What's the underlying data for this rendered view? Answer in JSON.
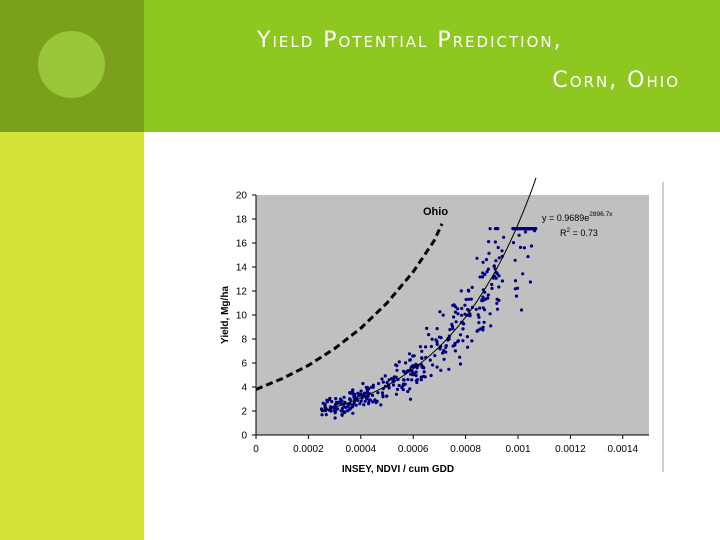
{
  "slide": {
    "title_line1": "Yield Potential Prediction,",
    "title_line2": "Corn, Ohio",
    "colors": {
      "top_band": "#8ec71f",
      "top_left_band": "#7aa01c",
      "left_band": "#d5e23a",
      "plot_bg": "#c0c0c0",
      "points": "#000080"
    }
  },
  "chart_data": {
    "type": "scatter",
    "xlabel": "INSEY, NDVI / cum GDD",
    "ylabel": "Yield, Mg/ha",
    "xlim": [
      0,
      0.0015
    ],
    "ylim": [
      0,
      20
    ],
    "x_ticks": [
      "0",
      "0.0002",
      "0.0004",
      "0.0006",
      "0.0008",
      "0.001",
      "0.0012",
      "0.0014"
    ],
    "y_ticks": [
      "0",
      "2",
      "4",
      "6",
      "8",
      "10",
      "12",
      "14",
      "16",
      "18",
      "20"
    ],
    "grid": false,
    "annotations": {
      "label": "Ohio",
      "equation": "y = 0.9689e",
      "exponent": "2896.7x",
      "r2_prefix": "R",
      "r2_sup": "2",
      "r2_suffix": " = 0.73"
    },
    "fit_curve": {
      "a": 0.9689,
      "b": 2896.7,
      "x_range": [
        0.00025,
        0.00107
      ]
    },
    "potential_curve": {
      "x": [
        0,
        0.0001,
        0.0002,
        0.0003,
        0.0004,
        0.0005,
        0.0006,
        0.00068,
        0.00071
      ],
      "y": [
        3.8,
        4.7,
        5.8,
        7.2,
        8.9,
        11.0,
        13.6,
        16.2,
        17.6
      ]
    },
    "points_range": {
      "x": [
        0.00025,
        0.00107
      ],
      "y": [
        1.0,
        17.2
      ]
    },
    "point_count": 420
  }
}
